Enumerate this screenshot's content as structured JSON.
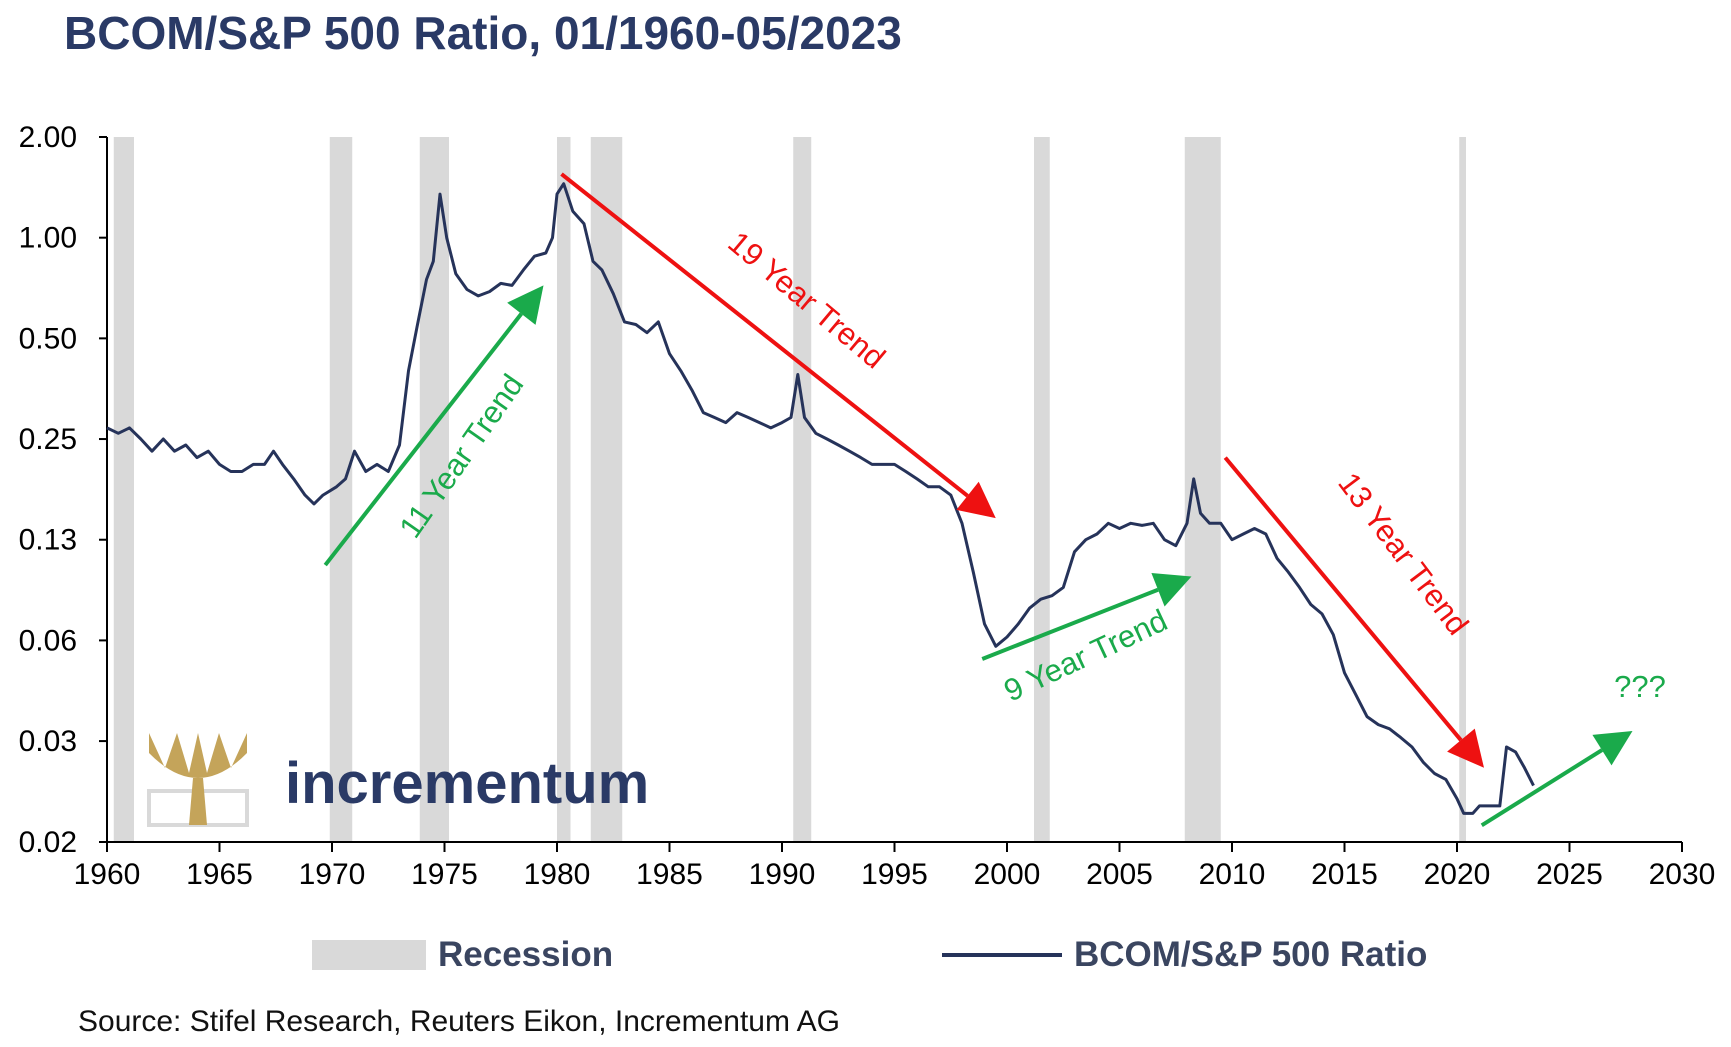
{
  "title": "BCOM/S&P 500 Ratio, 01/1960-05/2023",
  "source": "Source: Stifel Research, Reuters Eikon, Incrementum AG",
  "logo_text": "incrementum",
  "colors": {
    "title": "#2a3a66",
    "line": "#26335a",
    "recession": "#d9d9d9",
    "green": "#1aaa4b",
    "red": "#ee1111",
    "logo_gold": "#c4a45a"
  },
  "chart_data": {
    "type": "line",
    "xlim": [
      1960,
      2030
    ],
    "x_ticks": [
      1960,
      1965,
      1970,
      1975,
      1980,
      1985,
      1990,
      1995,
      2000,
      2005,
      2010,
      2015,
      2020,
      2025,
      2030
    ],
    "y_scale": "log2",
    "y_ticks": [
      {
        "value": 0.0156,
        "label": "0.02"
      },
      {
        "value": 0.03125,
        "label": "0.03"
      },
      {
        "value": 0.0625,
        "label": "0.06"
      },
      {
        "value": 0.125,
        "label": "0.13"
      },
      {
        "value": 0.25,
        "label": "0.25"
      },
      {
        "value": 0.5,
        "label": "0.50"
      },
      {
        "value": 1.0,
        "label": "1.00"
      },
      {
        "value": 2.0,
        "label": "2.00"
      }
    ],
    "ylim": [
      0.0156,
      2.0
    ],
    "legend": [
      "Recession",
      "BCOM/S&P 500 Ratio"
    ],
    "legend_position": "bottom",
    "recessions": [
      [
        1960.3,
        1961.2
      ],
      [
        1969.9,
        1970.9
      ],
      [
        1973.9,
        1975.2
      ],
      [
        1980.0,
        1980.6
      ],
      [
        1981.5,
        1982.9
      ],
      [
        1990.5,
        1991.3
      ],
      [
        2001.2,
        2001.9
      ],
      [
        2007.9,
        2009.5
      ],
      [
        2020.1,
        2020.4
      ]
    ],
    "series": [
      {
        "name": "BCOM/S&P 500 Ratio",
        "points": [
          [
            1960.0,
            0.27
          ],
          [
            1960.5,
            0.26
          ],
          [
            1961.0,
            0.27
          ],
          [
            1961.5,
            0.25
          ],
          [
            1962.0,
            0.23
          ],
          [
            1962.5,
            0.25
          ],
          [
            1963.0,
            0.23
          ],
          [
            1963.5,
            0.24
          ],
          [
            1964.0,
            0.22
          ],
          [
            1964.5,
            0.23
          ],
          [
            1965.0,
            0.21
          ],
          [
            1965.5,
            0.2
          ],
          [
            1966.0,
            0.2
          ],
          [
            1966.5,
            0.21
          ],
          [
            1967.0,
            0.21
          ],
          [
            1967.4,
            0.23
          ],
          [
            1967.8,
            0.21
          ],
          [
            1968.3,
            0.19
          ],
          [
            1968.8,
            0.17
          ],
          [
            1969.2,
            0.16
          ],
          [
            1969.6,
            0.17
          ],
          [
            1970.2,
            0.18
          ],
          [
            1970.6,
            0.19
          ],
          [
            1971.0,
            0.23
          ],
          [
            1971.5,
            0.2
          ],
          [
            1972.0,
            0.21
          ],
          [
            1972.5,
            0.2
          ],
          [
            1973.0,
            0.24
          ],
          [
            1973.4,
            0.4
          ],
          [
            1973.8,
            0.55
          ],
          [
            1974.2,
            0.75
          ],
          [
            1974.5,
            0.85
          ],
          [
            1974.8,
            1.35
          ],
          [
            1975.1,
            1.0
          ],
          [
            1975.5,
            0.78
          ],
          [
            1976.0,
            0.7
          ],
          [
            1976.5,
            0.67
          ],
          [
            1977.0,
            0.69
          ],
          [
            1977.5,
            0.73
          ],
          [
            1978.0,
            0.72
          ],
          [
            1978.5,
            0.8
          ],
          [
            1979.0,
            0.88
          ],
          [
            1979.5,
            0.9
          ],
          [
            1979.8,
            1.0
          ],
          [
            1980.0,
            1.35
          ],
          [
            1980.3,
            1.45
          ],
          [
            1980.7,
            1.2
          ],
          [
            1981.2,
            1.1
          ],
          [
            1981.6,
            0.85
          ],
          [
            1982.0,
            0.8
          ],
          [
            1982.5,
            0.68
          ],
          [
            1983.0,
            0.56
          ],
          [
            1983.5,
            0.55
          ],
          [
            1984.0,
            0.52
          ],
          [
            1984.5,
            0.56
          ],
          [
            1985.0,
            0.45
          ],
          [
            1985.5,
            0.4
          ],
          [
            1986.0,
            0.35
          ],
          [
            1986.5,
            0.3
          ],
          [
            1987.0,
            0.29
          ],
          [
            1987.5,
            0.28
          ],
          [
            1988.0,
            0.3
          ],
          [
            1988.5,
            0.29
          ],
          [
            1989.0,
            0.28
          ],
          [
            1989.5,
            0.27
          ],
          [
            1990.0,
            0.28
          ],
          [
            1990.4,
            0.29
          ],
          [
            1990.7,
            0.39
          ],
          [
            1991.0,
            0.29
          ],
          [
            1991.5,
            0.26
          ],
          [
            1992.0,
            0.25
          ],
          [
            1992.5,
            0.24
          ],
          [
            1993.0,
            0.23
          ],
          [
            1993.5,
            0.22
          ],
          [
            1994.0,
            0.21
          ],
          [
            1994.5,
            0.21
          ],
          [
            1995.0,
            0.21
          ],
          [
            1995.5,
            0.2
          ],
          [
            1996.0,
            0.19
          ],
          [
            1996.5,
            0.18
          ],
          [
            1997.0,
            0.18
          ],
          [
            1997.5,
            0.17
          ],
          [
            1998.0,
            0.14
          ],
          [
            1998.5,
            0.1
          ],
          [
            1999.0,
            0.07
          ],
          [
            1999.5,
            0.06
          ],
          [
            2000.0,
            0.064
          ],
          [
            2000.5,
            0.07
          ],
          [
            2001.0,
            0.078
          ],
          [
            2001.5,
            0.083
          ],
          [
            2002.0,
            0.085
          ],
          [
            2002.5,
            0.09
          ],
          [
            2003.0,
            0.115
          ],
          [
            2003.5,
            0.125
          ],
          [
            2004.0,
            0.13
          ],
          [
            2004.5,
            0.14
          ],
          [
            2005.0,
            0.135
          ],
          [
            2005.5,
            0.14
          ],
          [
            2006.0,
            0.138
          ],
          [
            2006.5,
            0.14
          ],
          [
            2007.0,
            0.125
          ],
          [
            2007.5,
            0.12
          ],
          [
            2008.0,
            0.14
          ],
          [
            2008.3,
            0.19
          ],
          [
            2008.6,
            0.15
          ],
          [
            2009.0,
            0.14
          ],
          [
            2009.5,
            0.14
          ],
          [
            2010.0,
            0.125
          ],
          [
            2010.5,
            0.13
          ],
          [
            2011.0,
            0.135
          ],
          [
            2011.5,
            0.13
          ],
          [
            2012.0,
            0.11
          ],
          [
            2012.5,
            0.1
          ],
          [
            2013.0,
            0.09
          ],
          [
            2013.5,
            0.08
          ],
          [
            2014.0,
            0.075
          ],
          [
            2014.5,
            0.065
          ],
          [
            2015.0,
            0.05
          ],
          [
            2015.5,
            0.043
          ],
          [
            2016.0,
            0.037
          ],
          [
            2016.5,
            0.035
          ],
          [
            2017.0,
            0.034
          ],
          [
            2017.5,
            0.032
          ],
          [
            2018.0,
            0.03
          ],
          [
            2018.5,
            0.027
          ],
          [
            2019.0,
            0.025
          ],
          [
            2019.5,
            0.024
          ],
          [
            2020.0,
            0.021
          ],
          [
            2020.3,
            0.019
          ],
          [
            2020.7,
            0.019
          ],
          [
            2021.0,
            0.02
          ],
          [
            2021.5,
            0.02
          ],
          [
            2021.9,
            0.02
          ],
          [
            2022.2,
            0.03
          ],
          [
            2022.6,
            0.029
          ],
          [
            2023.0,
            0.026
          ],
          [
            2023.4,
            0.023
          ]
        ]
      }
    ],
    "annotations": [
      {
        "text": "11 Year Trend",
        "color": "green",
        "arrow_from": [
          1969.7,
          0.105
        ],
        "arrow_to": [
          1979.4,
          0.72
        ]
      },
      {
        "text": "19 Year Trend",
        "color": "red",
        "arrow_from": [
          1980.2,
          1.55
        ],
        "arrow_to": [
          1999.5,
          0.145
        ]
      },
      {
        "text": "9 Year Trend",
        "color": "green",
        "arrow_from": [
          1998.9,
          0.055
        ],
        "arrow_to": [
          2008.2,
          0.097
        ]
      },
      {
        "text": "13 Year Trend",
        "color": "red",
        "arrow_from": [
          2009.7,
          0.22
        ],
        "arrow_to": [
          2021.2,
          0.026
        ]
      },
      {
        "text": "???",
        "color": "green",
        "arrow_from": [
          2021.1,
          0.0175
        ],
        "arrow_to": [
          2027.8,
          0.0335
        ]
      }
    ]
  }
}
